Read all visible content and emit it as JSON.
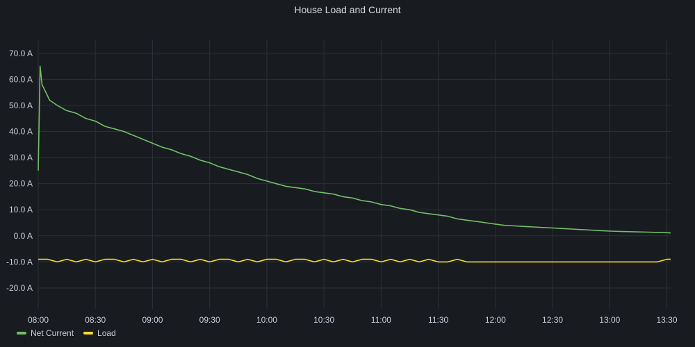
{
  "chart_data": {
    "type": "line",
    "title": "House Load and Current",
    "xlabel": "",
    "ylabel": "",
    "unit": "A",
    "x_range_min": [
      0,
      332
    ],
    "ylim": [
      -28,
      75
    ],
    "x_ticks": [
      {
        "min": 0,
        "label": "08:00"
      },
      {
        "min": 30,
        "label": "08:30"
      },
      {
        "min": 60,
        "label": "09:00"
      },
      {
        "min": 90,
        "label": "09:30"
      },
      {
        "min": 120,
        "label": "10:00"
      },
      {
        "min": 150,
        "label": "10:30"
      },
      {
        "min": 180,
        "label": "11:00"
      },
      {
        "min": 210,
        "label": "11:30"
      },
      {
        "min": 240,
        "label": "12:00"
      },
      {
        "min": 270,
        "label": "12:30"
      },
      {
        "min": 300,
        "label": "13:00"
      },
      {
        "min": 330,
        "label": "13:30"
      }
    ],
    "y_ticks": [
      {
        "value": 70,
        "label": "70.0 A"
      },
      {
        "value": 60,
        "label": "60.0 A"
      },
      {
        "value": 50,
        "label": "50.0 A"
      },
      {
        "value": 40,
        "label": "40.0 A"
      },
      {
        "value": 30,
        "label": "30.0 A"
      },
      {
        "value": 20,
        "label": "20.0 A"
      },
      {
        "value": 10,
        "label": "10.0 A"
      },
      {
        "value": 0,
        "label": "0.0 A"
      },
      {
        "value": -10,
        "label": "-10.0 A"
      },
      {
        "value": -20,
        "label": "-20.0 A"
      }
    ],
    "grid": true,
    "legend_position": "bottom-left",
    "series": [
      {
        "name": "Net Current",
        "color": "#73bf69",
        "x": [
          0,
          1,
          2,
          4,
          6,
          10,
          15,
          20,
          25,
          30,
          35,
          40,
          45,
          50,
          55,
          60,
          65,
          70,
          75,
          80,
          85,
          90,
          95,
          100,
          105,
          110,
          115,
          120,
          125,
          130,
          135,
          140,
          145,
          150,
          155,
          160,
          165,
          170,
          175,
          180,
          185,
          190,
          195,
          200,
          205,
          210,
          215,
          220,
          225,
          230,
          235,
          240,
          245,
          250,
          255,
          260,
          265,
          270,
          275,
          280,
          285,
          290,
          295,
          300,
          305,
          310,
          315,
          320,
          325,
          330,
          332
        ],
        "y": [
          25,
          65,
          58,
          55,
          52,
          50,
          48,
          47,
          45,
          44,
          42,
          41,
          40,
          38.5,
          37,
          35.5,
          34,
          33,
          31.5,
          30.5,
          29,
          28,
          26.5,
          25.5,
          24.5,
          23.5,
          22,
          21,
          20,
          19,
          18.5,
          18,
          17,
          16.5,
          16,
          15,
          14.5,
          13.5,
          13,
          12,
          11.5,
          10.5,
          10,
          9,
          8.5,
          8,
          7.5,
          6.5,
          6,
          5.5,
          5,
          4.5,
          4,
          3.8,
          3.6,
          3.4,
          3.2,
          3,
          2.8,
          2.6,
          2.4,
          2.2,
          2,
          1.8,
          1.7,
          1.6,
          1.5,
          1.4,
          1.3,
          1.2,
          1.1
        ]
      },
      {
        "name": "Load",
        "color": "#fade2a",
        "x": [
          0,
          5,
          10,
          15,
          20,
          25,
          30,
          35,
          40,
          45,
          50,
          55,
          60,
          65,
          70,
          75,
          80,
          85,
          90,
          95,
          100,
          105,
          110,
          115,
          120,
          125,
          130,
          135,
          140,
          145,
          150,
          155,
          160,
          165,
          170,
          175,
          180,
          185,
          190,
          195,
          200,
          205,
          210,
          215,
          220,
          225,
          230,
          235,
          240,
          245,
          250,
          255,
          260,
          265,
          270,
          275,
          280,
          285,
          290,
          295,
          300,
          305,
          310,
          315,
          320,
          325,
          330,
          332
        ],
        "y": [
          -9,
          -9,
          -10,
          -9,
          -10,
          -9,
          -10,
          -9,
          -9,
          -10,
          -9,
          -10,
          -9,
          -10,
          -9,
          -9,
          -10,
          -9,
          -10,
          -9,
          -9,
          -10,
          -9,
          -10,
          -9,
          -9,
          -10,
          -9,
          -9,
          -10,
          -9,
          -10,
          -9,
          -10,
          -9,
          -9,
          -10,
          -9,
          -10,
          -9,
          -10,
          -9,
          -10,
          -10,
          -9,
          -10,
          -10,
          -10,
          -10,
          -10,
          -10,
          -10,
          -10,
          -10,
          -10,
          -10,
          -10,
          -10,
          -10,
          -10,
          -10,
          -10,
          -10,
          -10,
          -10,
          -10,
          -9,
          -9
        ]
      }
    ]
  }
}
